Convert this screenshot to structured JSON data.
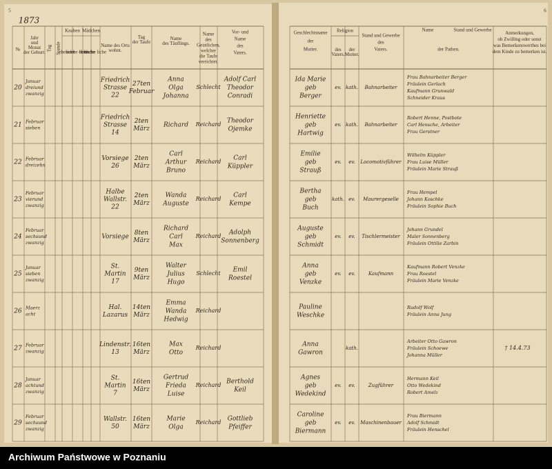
{
  "page_numbers": {
    "left": "5",
    "right": "6"
  },
  "year": "1873",
  "header": {
    "nr": "№",
    "birth": [
      "Jahr",
      "und",
      "Monat",
      "der Geburt."
    ],
    "day": "Tag",
    "hour": "Stunde",
    "boys": "Knaben",
    "girls": "Mädchen",
    "legit": "eheliche",
    "illegit": "unehe liche",
    "place": [
      "Name des Orts",
      "wohnt."
    ],
    "baptism": [
      "Tag",
      "der Taufe"
    ],
    "child": [
      "Name",
      "des Täuflings."
    ],
    "pastor": [
      "Name",
      "des",
      "Geistlichen,",
      "welcher",
      "die Taufe",
      "verrichtet."
    ],
    "father": [
      "Vor- und",
      "Name",
      "des",
      "Vaters."
    ],
    "mother": [
      "Geschlechtsname",
      "der",
      "Mutter."
    ],
    "religion": "Religion",
    "rel_f": [
      "des",
      "Vaters."
    ],
    "rel_m": [
      "der",
      "Mutter."
    ],
    "job": [
      "Stand und Gewerbe",
      "des",
      "Vaters."
    ],
    "sponsors_a": "Name",
    "sponsors_b": "Stand und Gewerbe",
    "sponsors_c": "der Pathen.",
    "notes": [
      "Anmerkungen,",
      "ob Zwilling oder sonst",
      "was Bemerkenswerthes bei",
      "dem Kinde zu bemerken ist."
    ]
  },
  "rows": [
    {
      "nr": "20",
      "birth": [
        "Januar",
        "dreiund",
        "zwanzig"
      ],
      "place": [
        "Friedrich",
        "Strasse",
        "22"
      ],
      "baptism": [
        "27ten",
        "Februar"
      ],
      "child": [
        "Anna",
        "Olga",
        "Johanna"
      ],
      "pastor": "Schlecht",
      "father": [
        "Adolf Carl",
        "Theodor",
        "Conradi"
      ],
      "mother": [
        "Ida Marie",
        "geb",
        "Berger"
      ],
      "rel_f": "ev.",
      "rel_m": "kath.",
      "job": "Bahnarbeiter",
      "sponsors": [
        "Frau Bahnarbeiter Berger",
        "Fräulein Gerlach",
        "Kaufmann Grunwald",
        "Schneider Kraus"
      ]
    },
    {
      "nr": "21",
      "birth": [
        "Februar",
        "sieben"
      ],
      "place": [
        "Friedrich",
        "Strasse",
        "14"
      ],
      "baptism": [
        "2ten",
        "März"
      ],
      "child": [
        "Richard"
      ],
      "pastor": "Reichard",
      "father": [
        "Theodor",
        "Ojemke"
      ],
      "mother": [
        "Henriette",
        "geb",
        "Hartwig"
      ],
      "rel_f": "ev.",
      "rel_m": "kath.",
      "job": "Bahnarbeiter",
      "sponsors": [
        "Robert Henne, Postbote",
        "Carl Hensche, Arbeiter",
        "Frau Gerstner"
      ]
    },
    {
      "nr": "22",
      "birth": [
        "Februar",
        "dreizehn"
      ],
      "place": [
        "Vorsiege",
        "26"
      ],
      "baptism": [
        "2ten",
        "März"
      ],
      "child": [
        "Carl",
        "Arthur",
        "Bruno"
      ],
      "pastor": "Reichard",
      "father": [
        "Carl",
        "Küppler"
      ],
      "mother": [
        "Emilie",
        "geb",
        "Strauß"
      ],
      "rel_f": "ev.",
      "rel_m": "ev.",
      "job": "Locomotivführer",
      "sponsors": [
        "Wilhelm Küppler",
        "Frau Luise Müller",
        "Fräulein Marie Strauß"
      ]
    },
    {
      "nr": "23",
      "birth": [
        "Februar",
        "vierund",
        "zwanzig"
      ],
      "place": [
        "Halbe",
        "Wallstr.",
        "22"
      ],
      "baptism": [
        "2ten",
        "März"
      ],
      "child": [
        "Wanda",
        "Auguste"
      ],
      "pastor": "Reichard",
      "father": [
        "Carl",
        "Kempe"
      ],
      "mother": [
        "Bertha",
        "geb",
        "Buch"
      ],
      "rel_f": "kath.",
      "rel_m": "ev.",
      "job": "Maurergeselle",
      "sponsors": [
        "Frau Hempel",
        "Johann Koschke",
        "Fräulein Sophie Buch"
      ]
    },
    {
      "nr": "24",
      "birth": [
        "Februar",
        "sechsund",
        "zwanzig"
      ],
      "place": [
        "Vorsiege"
      ],
      "baptism": [
        "8ten",
        "März"
      ],
      "child": [
        "Richard",
        "Carl",
        "Max"
      ],
      "pastor": "Reichard",
      "father": [
        "Adolph",
        "Sonnenberg"
      ],
      "mother": [
        "Auguste",
        "geb",
        "Schmidt"
      ],
      "rel_f": "ev.",
      "rel_m": "ev.",
      "job": "Tischlermeister",
      "sponsors": [
        "Johann Grundel",
        "Maler Sonnenberg",
        "Fräulein Ottilie Zarbin"
      ]
    },
    {
      "nr": "25",
      "birth": [
        "Januar",
        "sieben",
        "zwanzig"
      ],
      "place": [
        "St.",
        "Martin",
        "17"
      ],
      "baptism": [
        "9ten",
        "März"
      ],
      "child": [
        "Walter",
        "Julius",
        "Hugo"
      ],
      "pastor": "Schlecht",
      "father": [
        "Emil",
        "Roestel"
      ],
      "mother": [
        "Anna",
        "geb",
        "Venzke"
      ],
      "rel_f": "ev.",
      "rel_m": "ev.",
      "job": "Kaufmann",
      "sponsors": [
        "Kaufmann Robert Venzke",
        "Frau Roestel",
        "Fräulein Marie Venzke"
      ]
    },
    {
      "nr": "26",
      "birth": [
        "Maerz",
        "acht"
      ],
      "place": [
        "Hal.",
        "Lazarus"
      ],
      "baptism": [
        "14ten",
        "März"
      ],
      "child": [
        "Emma",
        "Wanda",
        "Hedwig"
      ],
      "pastor": "Reichard",
      "mother": [
        "Pauline",
        "Weschke"
      ],
      "sponsors": [
        "Rudolf Wolf",
        "Fräulein Anna Jung"
      ]
    },
    {
      "nr": "27",
      "birth": [
        "Februar",
        "zwanzig"
      ],
      "place": [
        "Lindenstr.",
        "13"
      ],
      "baptism": [
        "16ten",
        "März"
      ],
      "child": [
        "Max",
        "Otto"
      ],
      "pastor": "Reichard",
      "mother": [
        "Anna",
        "Gawron"
      ],
      "rel_m": "kath.",
      "sponsors": [
        "Arbeiter Otto Gawron",
        "Fräulein Schoewe",
        "Johanna Müller"
      ],
      "note": "† 14.4.73"
    },
    {
      "nr": "28",
      "birth": [
        "Januar",
        "achtund",
        "zwanzig"
      ],
      "place": [
        "St.",
        "Martin",
        "7"
      ],
      "baptism": [
        "16ten",
        "März"
      ],
      "child": [
        "Gertrud",
        "Frieda",
        "Luise"
      ],
      "pastor": "Reichard",
      "father": [
        "Berthold",
        "Keil"
      ],
      "mother": [
        "Agnes",
        "geb",
        "Wedekind"
      ],
      "rel_f": "ev.",
      "rel_m": "ev.",
      "job": "Zugführer",
      "sponsors": [
        "Hermann Keil",
        "Otto Wedekind",
        "Robert Amelz"
      ]
    },
    {
      "nr": "29",
      "birth": [
        "Februar",
        "sechsund",
        "zwanzig"
      ],
      "place": [
        "Wallstr.",
        "50"
      ],
      "baptism": [
        "16ten",
        "März"
      ],
      "child": [
        "Marie",
        "Olga"
      ],
      "pastor": "Reichard",
      "father": [
        "Gottlieb",
        "Pfeiffer"
      ],
      "mother": [
        "Caroline",
        "geb",
        "Biermann"
      ],
      "rel_f": "ev.",
      "rel_m": "ev.",
      "job": "Maschinenbauer",
      "sponsors": [
        "Frau Biermann",
        "Adolf Schmidt",
        "Fräulein Henschel"
      ]
    }
  ],
  "footer": "Archiwum Państwowe w Poznaniu"
}
